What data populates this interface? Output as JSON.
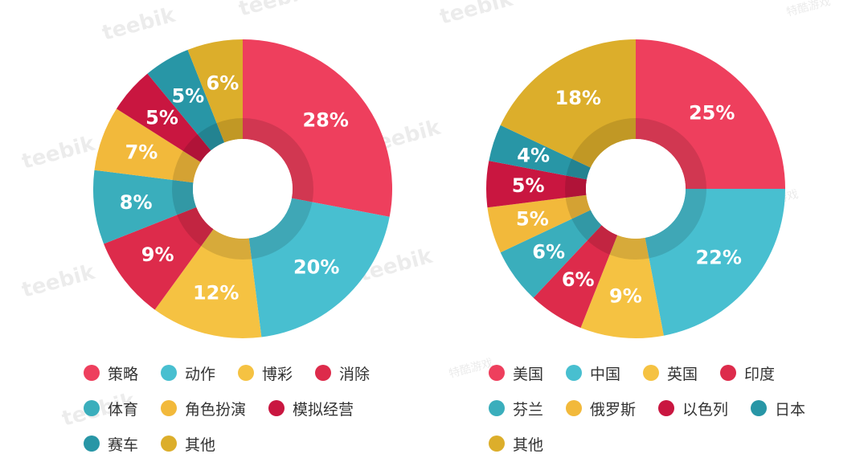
{
  "watermarks": [
    "teebik",
    "特酷游戏"
  ],
  "chart_data": [
    {
      "type": "pie",
      "slices": [
        {
          "label": "策略",
          "value": 28,
          "text": "28%",
          "color": "#ee3f5d"
        },
        {
          "label": "动作",
          "value": 20,
          "text": "20%",
          "color": "#48bfd0"
        },
        {
          "label": "博彩",
          "value": 12,
          "text": "12%",
          "color": "#f5c242"
        },
        {
          "label": "消除",
          "value": 9,
          "text": "9%",
          "color": "#dd2b4b"
        },
        {
          "label": "体育",
          "value": 8,
          "text": "8%",
          "color": "#3aaebc"
        },
        {
          "label": "角色扮演",
          "value": 7,
          "text": "7%",
          "color": "#f2b93b"
        },
        {
          "label": "模拟经营",
          "value": 5,
          "text": "5%",
          "color": "#c91640"
        },
        {
          "label": "赛车",
          "value": 5,
          "text": "5%",
          "color": "#2896a6"
        },
        {
          "label": "其他",
          "value": 6,
          "text": "6%",
          "color": "#dcae2b"
        }
      ]
    },
    {
      "type": "pie",
      "slices": [
        {
          "label": "美国",
          "value": 25,
          "text": "25%",
          "color": "#ee3f5d"
        },
        {
          "label": "中国",
          "value": 22,
          "text": "22%",
          "color": "#48bfd0"
        },
        {
          "label": "英国",
          "value": 9,
          "text": "9%",
          "color": "#f5c242"
        },
        {
          "label": "印度",
          "value": 6,
          "text": "6%",
          "color": "#dd2b4b"
        },
        {
          "label": "芬兰",
          "value": 6,
          "text": "6%",
          "color": "#3aaebc"
        },
        {
          "label": "俄罗斯",
          "value": 5,
          "text": "5%",
          "color": "#f2b93b"
        },
        {
          "label": "以色列",
          "value": 5,
          "text": "5%",
          "color": "#c91640"
        },
        {
          "label": "日本",
          "value": 4,
          "text": "4%",
          "color": "#2896a6"
        },
        {
          "label": "其他",
          "value": 18,
          "text": "18%",
          "color": "#dcae2b"
        }
      ]
    }
  ]
}
